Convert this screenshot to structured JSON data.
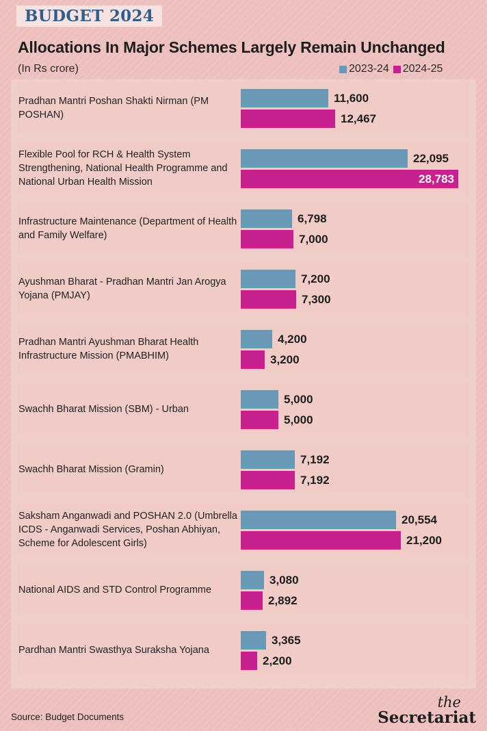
{
  "header": {
    "tag": "BUDGET 2024",
    "title": "Allocations In Major Schemes Largely Remain Unchanged",
    "unit": "(In Rs crore)"
  },
  "legend": [
    {
      "label": "2023-24",
      "color": "#6a98b7"
    },
    {
      "label": "2024-25",
      "color": "#c8208f"
    }
  ],
  "chart_data": {
    "type": "bar",
    "orientation": "horizontal",
    "categories": [
      "Pradhan Mantri Poshan Shakti Nirman (PM POSHAN)",
      "Flexible Pool for RCH & Health System Strengthening, National Health Programme and National Urban Health Mission",
      "Infrastructure Maintenance (Department of Health and Family Welfare)",
      "Ayushman Bharat - Pradhan Mantri Jan Arogya Yojana (PMJAY)",
      "Pradhan Mantri Ayushman Bharat Health Infrastructure Mission (PMABHIM)",
      "Swachh Bharat Mission (SBM) - Urban",
      "Swachh Bharat Mission (Gramin)",
      "Saksham Anganwadi and POSHAN 2.0 (Umbrella ICDS - Anganwadi Services, Poshan Abhiyan, Scheme for Adolescent Girls)",
      "National AIDS and STD Control Programme",
      "Pardhan Mantri Swasthya Suraksha Yojana"
    ],
    "series": [
      {
        "name": "2023-24",
        "color": "#6a98b7",
        "values": [
          11600,
          22095,
          6798,
          7200,
          4200,
          5000,
          7192,
          20554,
          3080,
          3365
        ],
        "labels": [
          "11,600",
          "22,095",
          "6,798",
          "7,200",
          "4,200",
          "5,000",
          "7,192",
          "20,554",
          "3,080",
          "3,365"
        ]
      },
      {
        "name": "2024-25",
        "color": "#c8208f",
        "values": [
          12467,
          28783,
          7000,
          7300,
          3200,
          5000,
          7192,
          21200,
          2892,
          2200
        ],
        "labels": [
          "12,467",
          "28,783",
          "7,000",
          "7,300",
          "3,200",
          "5,000",
          "7,192",
          "21,200",
          "2,892",
          "2,200"
        ]
      }
    ],
    "xlim": [
      0,
      28783
    ],
    "grid": false,
    "legend": "top-right"
  },
  "footer": {
    "source": "Source: Budget Documents",
    "logo_prefix": "the",
    "logo_name": "Secretariat"
  }
}
